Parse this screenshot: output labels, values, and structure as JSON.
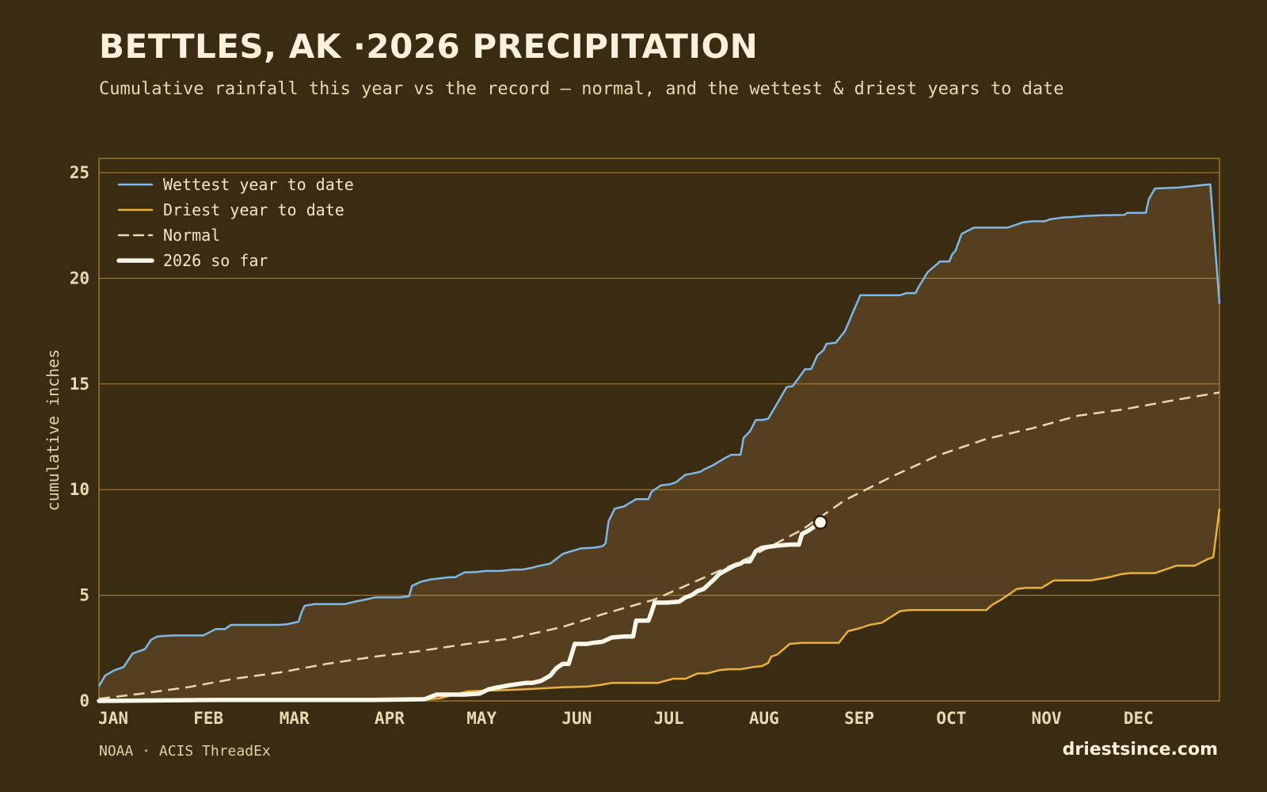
{
  "header": {
    "title": "BETTLES, AK ·2026 PRECIPITATION",
    "subtitle": "Cumulative rainfall this year vs the record — normal, and the wettest & driest years to date"
  },
  "footer": {
    "source": "NOAA · ACIS ThreadEx",
    "brand": "driestsince.com"
  },
  "colors": {
    "background": "#3a2c12",
    "band": "#553f1e",
    "grid": "#c9973a",
    "wettest": "#7fb8e6",
    "driest": "#e8b13e",
    "normal": "#e9d8b4",
    "current": "#fbf6ea"
  },
  "chart_data": {
    "type": "line",
    "ylabel": "cumulative inches",
    "ylim": [
      0,
      25
    ],
    "yticks": [
      0,
      5,
      10,
      15,
      20,
      25
    ],
    "xlim": [
      1,
      366
    ],
    "x_unit": "day of year",
    "months": [
      {
        "label": "JAN",
        "day": 1
      },
      {
        "label": "FEB",
        "day": 32
      },
      {
        "label": "MAR",
        "day": 60
      },
      {
        "label": "APR",
        "day": 91
      },
      {
        "label": "MAY",
        "day": 121
      },
      {
        "label": "JUN",
        "day": 152
      },
      {
        "label": "JUL",
        "day": 182
      },
      {
        "label": "AUG",
        "day": 213
      },
      {
        "label": "SEP",
        "day": 244
      },
      {
        "label": "OCT",
        "day": 274
      },
      {
        "label": "NOV",
        "day": 305
      },
      {
        "label": "DEC",
        "day": 335
      }
    ],
    "grid": true,
    "legend_position": "top-left",
    "band": "between wettest and driest",
    "series": [
      {
        "name": "Wettest year to date",
        "style": "solid",
        "x": [
          1,
          3,
          6,
          9,
          12,
          14,
          16,
          18,
          20,
          23,
          26,
          28,
          30,
          35,
          39,
          42,
          44,
          49,
          54,
          59,
          62,
          66,
          67,
          68,
          71,
          75,
          81,
          85,
          88,
          91,
          94,
          99,
          102,
          103,
          106,
          109,
          115,
          117,
          120,
          124,
          127,
          132,
          136,
          139,
          142,
          144,
          148,
          152,
          154,
          158,
          162,
          165,
          166,
          167,
          169,
          172,
          176,
          180,
          181,
          184,
          187,
          189,
          192,
          194,
          197,
          198,
          201,
          205,
          207,
          208,
          210,
          211,
          213,
          215,
          217,
          219,
          221,
          225,
          227,
          229,
          231,
          233,
          235,
          237,
          238,
          241,
          244,
          249,
          262,
          264,
          267,
          268,
          271,
          275,
          278,
          279,
          280,
          282,
          286,
          297,
          298,
          302,
          305,
          306,
          309,
          311,
          315,
          318,
          322,
          327,
          335,
          336,
          342,
          343,
          345,
          353,
          363,
          366
        ],
        "y": [
          0.7,
          1.2,
          1.45,
          1.6,
          2.25,
          2.35,
          2.45,
          2.9,
          3.05,
          3.08,
          3.1,
          3.1,
          3.1,
          3.1,
          3.4,
          3.4,
          3.6,
          3.6,
          3.6,
          3.6,
          3.62,
          3.75,
          4.2,
          4.5,
          4.58,
          4.58,
          4.58,
          4.72,
          4.8,
          4.9,
          4.9,
          4.9,
          4.95,
          5.45,
          5.65,
          5.75,
          5.85,
          5.85,
          6.08,
          6.1,
          6.15,
          6.15,
          6.22,
          6.22,
          6.3,
          6.38,
          6.5,
          6.95,
          7.05,
          7.22,
          7.25,
          7.32,
          7.45,
          8.5,
          9.1,
          9.2,
          9.55,
          9.55,
          9.9,
          10.2,
          10.25,
          10.35,
          10.7,
          10.75,
          10.85,
          10.95,
          11.15,
          11.5,
          11.65,
          11.65,
          11.65,
          12.45,
          12.75,
          13.3,
          13.3,
          13.35,
          13.85,
          14.85,
          14.9,
          15.3,
          15.7,
          15.7,
          16.35,
          16.6,
          16.9,
          16.95,
          17.5,
          19.2,
          19.2,
          19.3,
          19.3,
          19.6,
          20.3,
          20.8,
          20.8,
          21.15,
          21.3,
          22.1,
          22.4,
          22.4,
          22.45,
          22.65,
          22.7,
          22.7,
          22.7,
          22.8,
          22.88,
          22.9,
          22.95,
          22.98,
          23.0,
          23.1,
          23.1,
          23.75,
          24.25,
          24.3,
          24.45,
          18.8
        ]
      },
      {
        "name": "Driest year to date",
        "style": "solid",
        "x": [
          1,
          40,
          60,
          80,
          91,
          100,
          108,
          112,
          121,
          125,
          130,
          135,
          140,
          146,
          152,
          160,
          164,
          168,
          172,
          178,
          183,
          188,
          190,
          192,
          196,
          199,
          203,
          206,
          210,
          212,
          214,
          217,
          219,
          220,
          222,
          226,
          230,
          232,
          234,
          236,
          239,
          242,
          245,
          249,
          252,
          256,
          262,
          265,
          268,
          272,
          275,
          280,
          285,
          288,
          290,
          292,
          295,
          300,
          303,
          305,
          308,
          312,
          318,
          324,
          330,
          334,
          337,
          340,
          345,
          350,
          352,
          358,
          362,
          364,
          366
        ],
        "y": [
          0.0,
          0.0,
          0.0,
          0.0,
          0.02,
          0.05,
          0.08,
          0.12,
          0.45,
          0.48,
          0.5,
          0.52,
          0.55,
          0.6,
          0.65,
          0.68,
          0.75,
          0.85,
          0.85,
          0.85,
          0.85,
          1.05,
          1.05,
          1.05,
          1.3,
          1.3,
          1.45,
          1.5,
          1.5,
          1.55,
          1.6,
          1.65,
          1.8,
          2.1,
          2.2,
          2.7,
          2.75,
          2.75,
          2.75,
          2.75,
          2.75,
          2.75,
          3.3,
          3.45,
          3.6,
          3.7,
          4.25,
          4.3,
          4.3,
          4.3,
          4.3,
          4.3,
          4.3,
          4.3,
          4.3,
          4.55,
          4.8,
          5.3,
          5.35,
          5.35,
          5.35,
          5.7,
          5.7,
          5.7,
          5.85,
          6.0,
          6.05,
          6.05,
          6.05,
          6.3,
          6.4,
          6.4,
          6.7,
          6.8,
          9.1
        ]
      },
      {
        "name": "Normal",
        "style": "dashed",
        "x": [
          1,
          15,
          30,
          45,
          60,
          75,
          91,
          105,
          121,
          135,
          152,
          165,
          182,
          196,
          213,
          230,
          244,
          259,
          274,
          290,
          305,
          320,
          335,
          350,
          366
        ],
        "y": [
          0.1,
          0.35,
          0.65,
          1.05,
          1.35,
          1.75,
          2.1,
          2.35,
          2.7,
          2.95,
          3.5,
          4.1,
          4.8,
          5.7,
          6.8,
          8.1,
          9.5,
          10.6,
          11.6,
          12.4,
          12.9,
          13.5,
          13.8,
          14.2,
          14.6
        ]
      },
      {
        "name": "2026 so far",
        "style": "thick",
        "x": [
          1,
          40,
          90,
          107,
          111,
          120,
          125,
          128,
          130,
          135,
          140,
          142,
          145,
          148,
          150,
          152,
          154,
          156,
          160,
          162,
          165,
          168,
          172,
          175,
          176,
          180,
          181,
          182,
          186,
          190,
          192,
          194,
          196,
          198,
          201,
          203,
          206,
          208,
          210,
          211,
          213,
          215,
          217,
          222,
          226,
          229,
          230,
          232,
          234,
          236
        ],
        "y": [
          0.0,
          0.05,
          0.05,
          0.08,
          0.3,
          0.3,
          0.35,
          0.55,
          0.62,
          0.75,
          0.85,
          0.85,
          0.95,
          1.2,
          1.55,
          1.75,
          1.75,
          2.7,
          2.7,
          2.75,
          2.8,
          3.0,
          3.05,
          3.05,
          3.8,
          3.8,
          4.2,
          4.65,
          4.65,
          4.7,
          4.9,
          5.0,
          5.2,
          5.3,
          5.7,
          6.0,
          6.25,
          6.4,
          6.5,
          6.6,
          6.6,
          7.1,
          7.25,
          7.35,
          7.4,
          7.4,
          7.9,
          8.05,
          8.25,
          8.45
        ]
      }
    ],
    "current": {
      "day": 236,
      "value": 8.45
    }
  }
}
